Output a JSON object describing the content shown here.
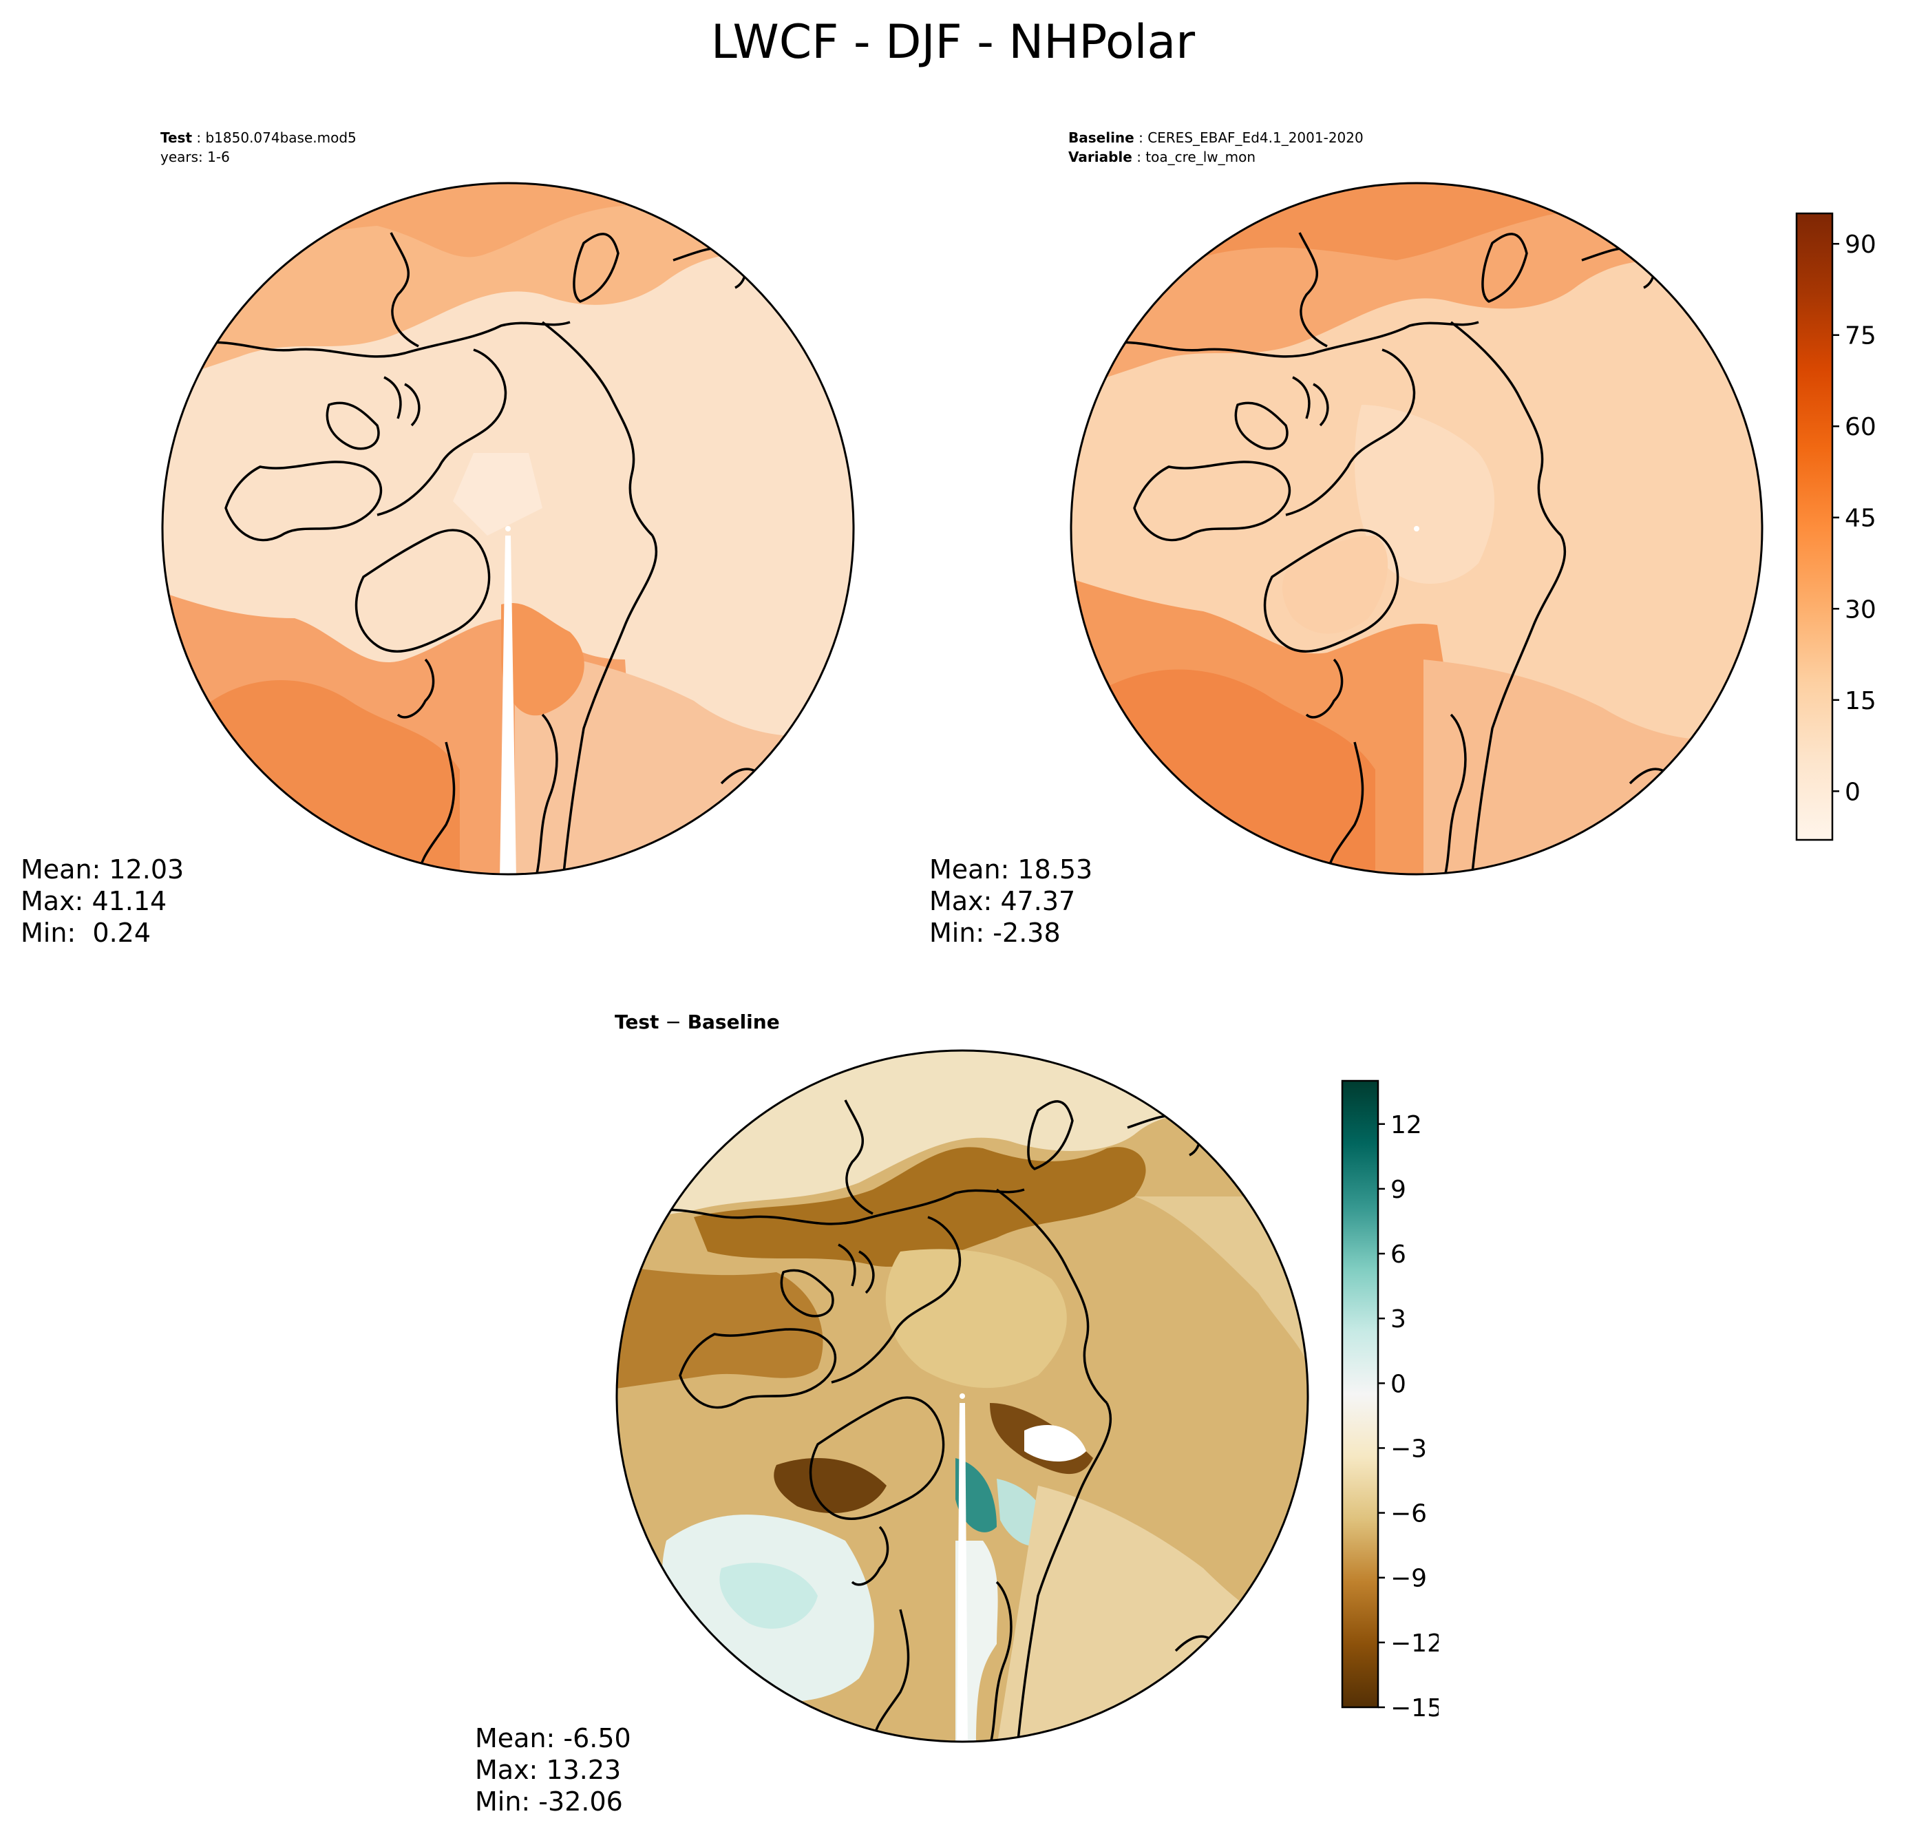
{
  "figure": {
    "title": "LWCF - DJF - NHPolar"
  },
  "panels": {
    "test": {
      "header_label": "Test",
      "header_value": "b1850.074base.mod5",
      "years_line": "years: 1-6",
      "stats": {
        "mean": "Mean: 12.03",
        "max": "Max: 41.14",
        "min": "Min:  0.24"
      }
    },
    "baseline": {
      "header_label": "Baseline",
      "header_value": "CERES_EBAF_Ed4.1_2001-2020",
      "variable_label": "Variable",
      "variable_value": "toa_cre_lw_mon",
      "stats": {
        "mean": "Mean: 18.53",
        "max": "Max: 47.37",
        "min": "Min: -2.38"
      }
    },
    "diff": {
      "title_left": "Test",
      "title_op": " − ",
      "title_right": "Baseline",
      "stats": {
        "mean": "Mean: -6.50",
        "max": "Max: 13.23",
        "min": "Min: -32.06"
      }
    }
  },
  "colorbars": {
    "main": {
      "ticks": [
        "0",
        "15",
        "30",
        "45",
        "60",
        "75",
        "90"
      ],
      "tick_values": [
        0,
        15,
        30,
        45,
        60,
        75,
        90
      ],
      "range": [
        -8,
        95
      ],
      "colors": [
        "#fff5eb",
        "#fde5cc",
        "#fdd0a2",
        "#fdae6b",
        "#fd8d3c",
        "#f16913",
        "#d94801",
        "#a63603",
        "#7f2704"
      ]
    },
    "diff": {
      "ticks": [
        "12",
        "9",
        "6",
        "3",
        "0",
        "−3",
        "−6",
        "−9",
        "−12",
        "−15"
      ],
      "tick_values": [
        12,
        9,
        6,
        3,
        0,
        -3,
        -6,
        -9,
        -12,
        -15
      ],
      "range": [
        -15,
        14
      ],
      "colors": [
        "#543005",
        "#8c510a",
        "#bf812d",
        "#dfc27d",
        "#f6e8c3",
        "#f5f5f5",
        "#c7eae5",
        "#80cdc1",
        "#35978f",
        "#01665e",
        "#003c30"
      ]
    }
  }
}
